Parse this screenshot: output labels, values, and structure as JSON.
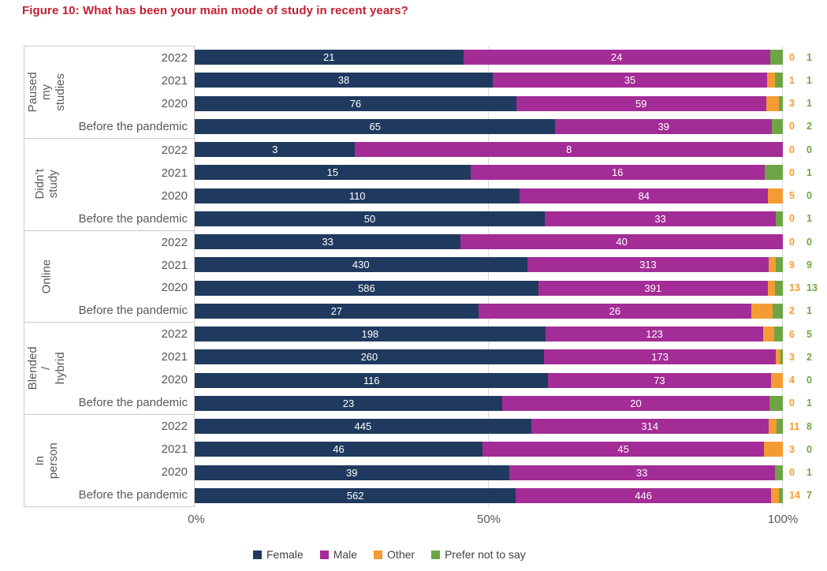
{
  "title": "Figure 10: What has been your main mode of study in recent years?",
  "colors": {
    "female": "#1f3a5e",
    "male": "#a32c96",
    "other": "#f49c33",
    "prefer": "#6da544",
    "title": "#c22033",
    "axis_text": "#595959",
    "legend_text": "#404040",
    "grid": "#d9d9d9",
    "box_border": "#c9c9c9"
  },
  "chart_data": {
    "type": "bar",
    "orientation": "horizontal",
    "stacking": "percent",
    "title": "Figure 10: What has been your main mode of study in recent years?",
    "series": [
      "Female",
      "Male",
      "Other",
      "Prefer not to say"
    ],
    "x_ticks": [
      "0%",
      "50%",
      "100%"
    ],
    "x_range": [
      0,
      100
    ],
    "grid": "vertical-at-50-and-100",
    "legend_position": "bottom",
    "value_labels": "Female and Male values inside segments; Other and Prefer-not-to-say values outside right of bars",
    "groups": [
      {
        "label": "Paused\nmy studies",
        "rows": [
          {
            "year": "2022",
            "values": [
              21,
              24,
              0,
              1
            ]
          },
          {
            "year": "2021",
            "values": [
              38,
              35,
              1,
              1
            ]
          },
          {
            "year": "2020",
            "values": [
              76,
              59,
              3,
              1
            ]
          },
          {
            "year": "Before the pandemic",
            "values": [
              65,
              39,
              0,
              2
            ]
          }
        ]
      },
      {
        "label": "Didn’t study",
        "rows": [
          {
            "year": "2022",
            "values": [
              3,
              8,
              0,
              0
            ]
          },
          {
            "year": "2021",
            "values": [
              15,
              16,
              0,
              1
            ]
          },
          {
            "year": "2020",
            "values": [
              110,
              84,
              5,
              0
            ]
          },
          {
            "year": "Before the pandemic",
            "values": [
              50,
              33,
              0,
              1
            ]
          }
        ]
      },
      {
        "label": "Online",
        "rows": [
          {
            "year": "2022",
            "values": [
              33,
              40,
              0,
              0
            ]
          },
          {
            "year": "2021",
            "values": [
              430,
              313,
              9,
              9
            ]
          },
          {
            "year": "2020",
            "values": [
              586,
              391,
              13,
              13
            ]
          },
          {
            "year": "Before the pandemic",
            "values": [
              27,
              26,
              2,
              1
            ]
          }
        ]
      },
      {
        "label": "Blended /\nhybrid",
        "rows": [
          {
            "year": "2022",
            "values": [
              198,
              123,
              6,
              5
            ]
          },
          {
            "year": "2021",
            "values": [
              260,
              173,
              3,
              2
            ]
          },
          {
            "year": "2020",
            "values": [
              116,
              73,
              4,
              0
            ]
          },
          {
            "year": "Before the pandemic",
            "values": [
              23,
              20,
              0,
              1
            ]
          }
        ]
      },
      {
        "label": "In person",
        "rows": [
          {
            "year": "2022",
            "values": [
              445,
              314,
              11,
              8
            ]
          },
          {
            "year": "2021",
            "values": [
              46,
              45,
              3,
              0
            ]
          },
          {
            "year": "2020",
            "values": [
              39,
              33,
              0,
              1
            ]
          },
          {
            "year": "Before the pandemic",
            "values": [
              562,
              446,
              14,
              7
            ]
          }
        ]
      }
    ]
  },
  "legend": {
    "items": [
      {
        "label": "Female",
        "color": "#1f3a5e"
      },
      {
        "label": "Male",
        "color": "#a32c96"
      },
      {
        "label": "Other",
        "color": "#f49c33"
      },
      {
        "label": "Prefer not to say",
        "color": "#6da544"
      }
    ]
  }
}
